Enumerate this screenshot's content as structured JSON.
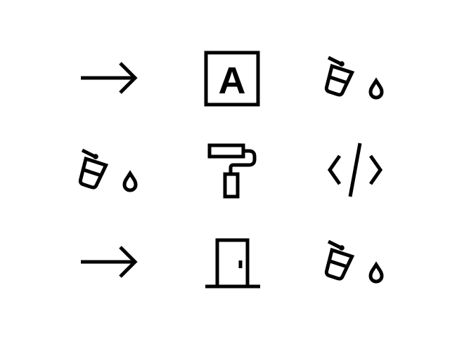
{
  "colors": {
    "background": "#ffffff",
    "icon": "#000000"
  },
  "icons": [
    {
      "name": "arrow-right-icon"
    },
    {
      "name": "text-box-icon",
      "glyph": "A"
    },
    {
      "name": "paint-bucket-icon"
    },
    {
      "name": "paint-bucket-icon"
    },
    {
      "name": "paint-roller-icon"
    },
    {
      "name": "code-icon"
    },
    {
      "name": "arrow-right-icon"
    },
    {
      "name": "door-icon"
    },
    {
      "name": "paint-bucket-icon"
    }
  ]
}
